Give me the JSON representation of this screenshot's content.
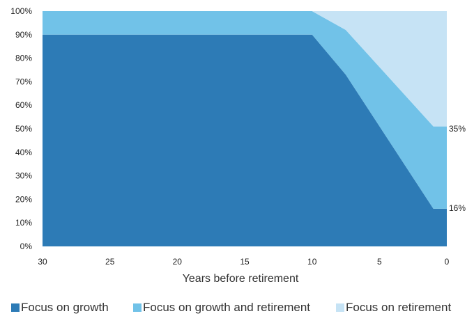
{
  "chart_data": {
    "type": "area",
    "stacked": true,
    "xlabel": "Years before retirement",
    "ylabel": "",
    "x": [
      30,
      10,
      7.5,
      1,
      0
    ],
    "xlim": [
      30,
      0
    ],
    "ylim": [
      0,
      100
    ],
    "x_ticks": [
      30,
      25,
      20,
      15,
      10,
      5,
      0
    ],
    "y_ticks": [
      "0%",
      "10%",
      "20%",
      "30%",
      "40%",
      "50%",
      "60%",
      "70%",
      "80%",
      "90%",
      "100%"
    ],
    "series": [
      {
        "name": "Focus on growth",
        "color": "#2d7bb6",
        "values": [
          90,
          90,
          73,
          16,
          16
        ]
      },
      {
        "name": "Focus on growth and retirement",
        "color": "#71c2e8",
        "values": [
          10,
          10,
          19,
          35,
          35
        ]
      },
      {
        "name": "Focus on retirement",
        "color": "#c6e3f5",
        "values": [
          0,
          0,
          8,
          49,
          49
        ]
      }
    ],
    "annotations": [
      "35%",
      "16%"
    ],
    "legend_position": "bottom",
    "grid": false
  }
}
